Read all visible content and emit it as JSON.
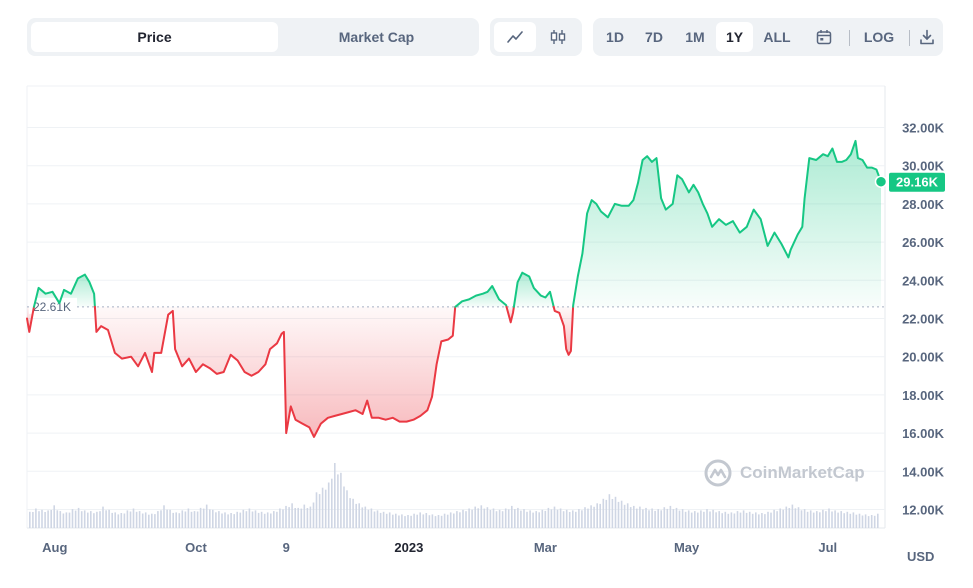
{
  "toolbar": {
    "metric_tabs": [
      "Price",
      "Market Cap"
    ],
    "active_metric": "Price",
    "chart_types": [
      "line-chart-icon",
      "candlestick-icon"
    ],
    "active_chart_type": "line-chart-icon",
    "ranges": [
      "1D",
      "7D",
      "1M",
      "1Y",
      "ALL"
    ],
    "active_range": "1Y",
    "calendar_icon": "calendar-icon",
    "log_label": "LOG",
    "download_icon": "download-icon"
  },
  "watermark": "CoinMarketCap",
  "colors": {
    "up": "#16c784",
    "down": "#ea3943",
    "volume": "#cfd6e4"
  },
  "chart_data": {
    "type": "area",
    "y_unit": "USD",
    "ylim": [
      11000,
      34000
    ],
    "y_ticks": [
      "12.00K",
      "14.00K",
      "16.00K",
      "18.00K",
      "20.00K",
      "22.00K",
      "24.00K",
      "26.00K",
      "28.00K",
      "30.00K",
      "32.00K"
    ],
    "y_tick_values": [
      12000,
      14000,
      16000,
      18000,
      20000,
      22000,
      24000,
      26000,
      28000,
      30000,
      32000
    ],
    "x_ticks": [
      "Aug",
      "Oct",
      "9",
      "2023",
      "Mar",
      "May",
      "Jul"
    ],
    "x_tick_dates": [
      "2022-08-01",
      "2022-10-01",
      "2022-11-09",
      "2023-01-01",
      "2023-03-01",
      "2023-05-01",
      "2023-07-01"
    ],
    "bold_x_tick": "2023",
    "baseline_value": 22610,
    "baseline_label": "22.61K",
    "current_value": 29160,
    "current_label": "29.16K",
    "grid": true,
    "price_series": {
      "name": "Price",
      "points": [
        [
          "2022-07-20",
          22000
        ],
        [
          "2022-07-21",
          21300
        ],
        [
          "2022-07-23",
          22600
        ],
        [
          "2022-07-25",
          23600
        ],
        [
          "2022-07-28",
          23300
        ],
        [
          "2022-07-31",
          23400
        ],
        [
          "2022-08-03",
          22800
        ],
        [
          "2022-08-05",
          23500
        ],
        [
          "2022-08-08",
          23300
        ],
        [
          "2022-08-11",
          24100
        ],
        [
          "2022-08-14",
          24300
        ],
        [
          "2022-08-16",
          23900
        ],
        [
          "2022-08-18",
          23300
        ],
        [
          "2022-08-19",
          21300
        ],
        [
          "2022-08-21",
          21600
        ],
        [
          "2022-08-24",
          21400
        ],
        [
          "2022-08-27",
          20200
        ],
        [
          "2022-08-30",
          19900
        ],
        [
          "2022-09-03",
          20000
        ],
        [
          "2022-09-06",
          19500
        ],
        [
          "2022-09-09",
          20200
        ],
        [
          "2022-09-12",
          19200
        ],
        [
          "2022-09-13",
          20200
        ],
        [
          "2022-09-16",
          20200
        ],
        [
          "2022-09-19",
          22200
        ],
        [
          "2022-09-21",
          22400
        ],
        [
          "2022-09-22",
          20400
        ],
        [
          "2022-09-25",
          19500
        ],
        [
          "2022-09-28",
          19900
        ],
        [
          "2022-10-01",
          19200
        ],
        [
          "2022-10-04",
          19600
        ],
        [
          "2022-10-07",
          19400
        ],
        [
          "2022-10-10",
          19100
        ],
        [
          "2022-10-13",
          19200
        ],
        [
          "2022-10-16",
          20100
        ],
        [
          "2022-10-19",
          19800
        ],
        [
          "2022-10-22",
          19200
        ],
        [
          "2022-10-25",
          19000
        ],
        [
          "2022-10-28",
          19200
        ],
        [
          "2022-10-31",
          19600
        ],
        [
          "2022-11-02",
          20400
        ],
        [
          "2022-11-05",
          20700
        ],
        [
          "2022-11-07",
          21200
        ],
        [
          "2022-11-08",
          21300
        ],
        [
          "2022-11-09",
          16000
        ],
        [
          "2022-11-11",
          17400
        ],
        [
          "2022-11-13",
          16700
        ],
        [
          "2022-11-16",
          16500
        ],
        [
          "2022-11-19",
          16300
        ],
        [
          "2022-11-21",
          15800
        ],
        [
          "2022-11-24",
          16500
        ],
        [
          "2022-11-27",
          16800
        ],
        [
          "2022-11-30",
          16900
        ],
        [
          "2022-12-03",
          17000
        ],
        [
          "2022-12-06",
          17100
        ],
        [
          "2022-12-09",
          17200
        ],
        [
          "2022-12-12",
          17000
        ],
        [
          "2022-12-14",
          17700
        ],
        [
          "2022-12-16",
          16800
        ],
        [
          "2022-12-19",
          16800
        ],
        [
          "2022-12-22",
          16700
        ],
        [
          "2022-12-25",
          16800
        ],
        [
          "2022-12-28",
          16600
        ],
        [
          "2022-12-31",
          16600
        ],
        [
          "2023-01-03",
          16700
        ],
        [
          "2023-01-06",
          16900
        ],
        [
          "2023-01-09",
          17200
        ],
        [
          "2023-01-11",
          17900
        ],
        [
          "2023-01-13",
          19600
        ],
        [
          "2023-01-15",
          20800
        ],
        [
          "2023-01-18",
          20900
        ],
        [
          "2023-01-20",
          21100
        ],
        [
          "2023-01-21",
          22600
        ],
        [
          "2023-01-24",
          22900
        ],
        [
          "2023-01-27",
          23000
        ],
        [
          "2023-01-30",
          23200
        ],
        [
          "2023-02-02",
          23300
        ],
        [
          "2023-02-04",
          23400
        ],
        [
          "2023-02-06",
          23700
        ],
        [
          "2023-02-09",
          23000
        ],
        [
          "2023-02-12",
          22700
        ],
        [
          "2023-02-14",
          21800
        ],
        [
          "2023-02-15",
          22300
        ],
        [
          "2023-02-17",
          23900
        ],
        [
          "2023-02-19",
          24400
        ],
        [
          "2023-02-22",
          24200
        ],
        [
          "2023-02-24",
          23600
        ],
        [
          "2023-02-27",
          23200
        ],
        [
          "2023-03-01",
          23100
        ],
        [
          "2023-03-03",
          23400
        ],
        [
          "2023-03-05",
          22400
        ],
        [
          "2023-03-07",
          22300
        ],
        [
          "2023-03-09",
          21600
        ],
        [
          "2023-03-10",
          20400
        ],
        [
          "2023-03-11",
          20100
        ],
        [
          "2023-03-12",
          20300
        ],
        [
          "2023-03-13",
          22700
        ],
        [
          "2023-03-15",
          24200
        ],
        [
          "2023-03-17",
          25400
        ],
        [
          "2023-03-19",
          27500
        ],
        [
          "2023-03-21",
          28200
        ],
        [
          "2023-03-23",
          28000
        ],
        [
          "2023-03-25",
          27600
        ],
        [
          "2023-03-28",
          27300
        ],
        [
          "2023-03-31",
          28000
        ],
        [
          "2023-04-03",
          27900
        ],
        [
          "2023-04-06",
          27900
        ],
        [
          "2023-04-08",
          28200
        ],
        [
          "2023-04-10",
          29100
        ],
        [
          "2023-04-12",
          30300
        ],
        [
          "2023-04-14",
          30500
        ],
        [
          "2023-04-16",
          30200
        ],
        [
          "2023-04-18",
          30400
        ],
        [
          "2023-04-20",
          28300
        ],
        [
          "2023-04-22",
          27700
        ],
        [
          "2023-04-25",
          28000
        ],
        [
          "2023-04-27",
          29500
        ],
        [
          "2023-04-29",
          29300
        ],
        [
          "2023-05-02",
          28600
        ],
        [
          "2023-05-04",
          29000
        ],
        [
          "2023-05-06",
          28600
        ],
        [
          "2023-05-08",
          28000
        ],
        [
          "2023-05-10",
          27500
        ],
        [
          "2023-05-12",
          26800
        ],
        [
          "2023-05-15",
          27200
        ],
        [
          "2023-05-18",
          26900
        ],
        [
          "2023-05-21",
          27100
        ],
        [
          "2023-05-24",
          26500
        ],
        [
          "2023-05-27",
          26800
        ],
        [
          "2023-05-30",
          27700
        ],
        [
          "2023-06-02",
          27200
        ],
        [
          "2023-06-05",
          25800
        ],
        [
          "2023-06-08",
          26500
        ],
        [
          "2023-06-11",
          25900
        ],
        [
          "2023-06-14",
          25200
        ],
        [
          "2023-06-15",
          25600
        ],
        [
          "2023-06-18",
          26400
        ],
        [
          "2023-06-20",
          26800
        ],
        [
          "2023-06-21",
          28300
        ],
        [
          "2023-06-23",
          30400
        ],
        [
          "2023-06-26",
          30300
        ],
        [
          "2023-06-29",
          30600
        ],
        [
          "2023-07-01",
          30500
        ],
        [
          "2023-07-03",
          30900
        ],
        [
          "2023-07-05",
          30200
        ],
        [
          "2023-07-07",
          30200
        ],
        [
          "2023-07-09",
          30300
        ],
        [
          "2023-07-11",
          30600
        ],
        [
          "2023-07-13",
          31300
        ],
        [
          "2023-07-14",
          30400
        ],
        [
          "2023-07-16",
          30300
        ],
        [
          "2023-07-18",
          29900
        ],
        [
          "2023-07-20",
          29900
        ],
        [
          "2023-07-22",
          29800
        ],
        [
          "2023-07-24",
          29160
        ]
      ]
    },
    "volume_series": {
      "name": "Volume",
      "relative": [
        0.25,
        0.3,
        0.28,
        0.27,
        0.35,
        0.26,
        0.24,
        0.29,
        0.31,
        0.27,
        0.26,
        0.25,
        0.33,
        0.28,
        0.24,
        0.23,
        0.27,
        0.3,
        0.26,
        0.24,
        0.22,
        0.26,
        0.35,
        0.28,
        0.24,
        0.27,
        0.3,
        0.26,
        0.31,
        0.36,
        0.28,
        0.26,
        0.24,
        0.23,
        0.25,
        0.28,
        0.3,
        0.27,
        0.25,
        0.24,
        0.26,
        0.3,
        0.34,
        0.38,
        0.31,
        0.36,
        0.33,
        0.55,
        0.62,
        0.7,
        1.0,
        0.85,
        0.58,
        0.45,
        0.38,
        0.33,
        0.3,
        0.27,
        0.25,
        0.24,
        0.22,
        0.21,
        0.2,
        0.22,
        0.24,
        0.23,
        0.21,
        0.2,
        0.22,
        0.24,
        0.26,
        0.28,
        0.3,
        0.33,
        0.35,
        0.32,
        0.3,
        0.28,
        0.3,
        0.34,
        0.31,
        0.29,
        0.27,
        0.26,
        0.28,
        0.31,
        0.33,
        0.3,
        0.28,
        0.27,
        0.29,
        0.32,
        0.35,
        0.38,
        0.45,
        0.52,
        0.48,
        0.42,
        0.38,
        0.34,
        0.33,
        0.31,
        0.3,
        0.29,
        0.32,
        0.34,
        0.31,
        0.29,
        0.27,
        0.26,
        0.27,
        0.29,
        0.28,
        0.26,
        0.25,
        0.24,
        0.26,
        0.27,
        0.25,
        0.24,
        0.23,
        0.25,
        0.28,
        0.3,
        0.33,
        0.36,
        0.32,
        0.29,
        0.27,
        0.26,
        0.28,
        0.3,
        0.27,
        0.26,
        0.25,
        0.24,
        0.22,
        0.21,
        0.2,
        0.22
      ]
    }
  }
}
